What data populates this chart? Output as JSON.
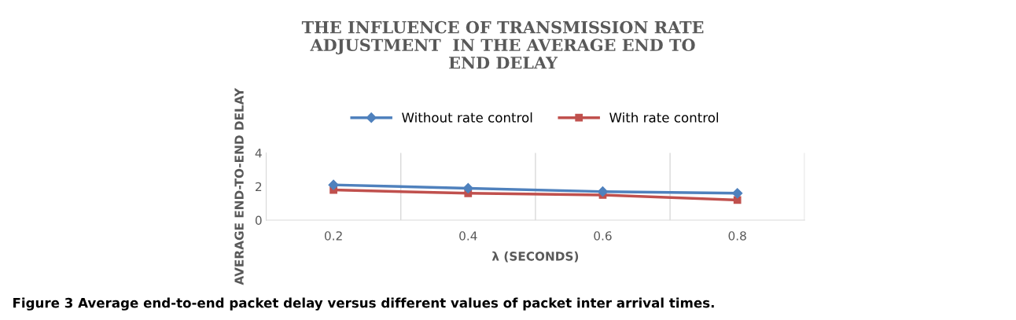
{
  "chart_data": {
    "type": "line",
    "title": "THE INFLUENCE OF TRANSMISSION RATE\nADJUSTMENT  IN THE AVERAGE END TO\nEND DELAY",
    "xlabel": "λ (SECONDS)",
    "ylabel": "AVERAGE END-TO-END DELAY",
    "categories": [
      "0.2",
      "0.4",
      "0.6",
      "0.8"
    ],
    "series": [
      {
        "name": "Without rate control",
        "color": "#4f81bd",
        "values": [
          2.1,
          1.9,
          1.7,
          1.6
        ],
        "marker": "diamond"
      },
      {
        "name": "With rate control",
        "color": "#c0504d",
        "values": [
          1.8,
          1.6,
          1.5,
          1.2
        ],
        "marker": "square"
      }
    ],
    "ylim": [
      0,
      4
    ],
    "yticks": [
      0,
      2,
      4
    ],
    "grid": "x",
    "legend": "top",
    "annotations": [
      "Figure 3 Average end-to-end packet delay versus different values of packet inter arrival times."
    ]
  }
}
